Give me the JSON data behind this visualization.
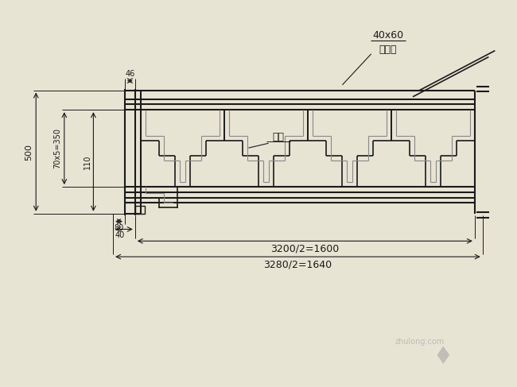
{
  "bg_color": "#e8e4d4",
  "line_color": "#1a1a1a",
  "gray_color": "#888888",
  "fig_width": 6.5,
  "fig_height": 4.87,
  "label_40x60": "40x60",
  "label_yamu": "亚木角",
  "label_hunmian": "混面",
  "dim1": "3200/2=1600",
  "dim2": "3280/2=1640",
  "dim_500": "500",
  "dim_70x5": "70x5=350",
  "dim_110": "110",
  "dim_80": "80",
  "dim_40": "40",
  "dim_46": "46"
}
